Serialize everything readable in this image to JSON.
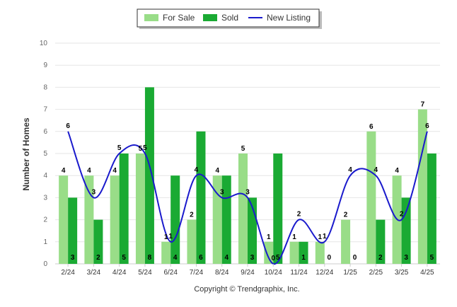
{
  "chart_data": {
    "type": "bar",
    "ylabel": "Number of Homes",
    "xlabel": "",
    "ylim": [
      0,
      10
    ],
    "yticks": [
      0,
      1,
      2,
      3,
      4,
      5,
      6,
      7,
      8,
      9,
      10
    ],
    "grid": true,
    "legend_position": "top-center",
    "categories": [
      "2/24",
      "3/24",
      "4/24",
      "5/24",
      "6/24",
      "7/24",
      "8/24",
      "9/24",
      "10/24",
      "11/24",
      "12/24",
      "1/25",
      "2/25",
      "3/25",
      "4/25"
    ],
    "series": [
      {
        "name": "For Sale",
        "kind": "bar",
        "color": "#99dd88",
        "values": [
          4,
          4,
          4,
          5,
          1,
          2,
          4,
          5,
          1,
          1,
          1,
          2,
          6,
          4,
          7
        ]
      },
      {
        "name": "Sold",
        "kind": "bar",
        "color": "#1aaa33",
        "values": [
          3,
          2,
          5,
          8,
          4,
          6,
          4,
          3,
          5,
          1,
          0,
          0,
          2,
          3,
          5
        ]
      },
      {
        "name": "New Listing",
        "kind": "line",
        "color": "#1a1acc",
        "values": [
          6,
          3,
          5,
          5,
          1,
          4,
          3,
          3,
          0,
          2,
          1,
          4,
          4,
          2,
          6
        ]
      }
    ],
    "copyright": "Copyright © Trendgraphix, Inc."
  }
}
